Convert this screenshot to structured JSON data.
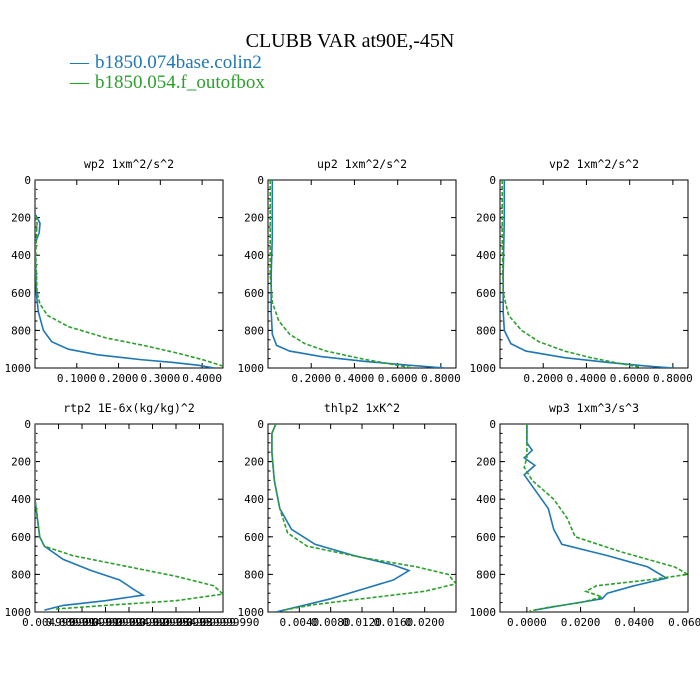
{
  "title": "CLUBB VAR at90E,-45N",
  "legend": [
    {
      "label": "b1850.074base.colin2",
      "color": "#1f77b4",
      "dash": "solid"
    },
    {
      "label": "b1850.054.f_outofbox",
      "color": "#2ca02c",
      "dash": "dashed"
    }
  ],
  "chart_data": [
    {
      "type": "line",
      "title": "wp2  1xm^2/s^2",
      "xlim": [
        0,
        0.45
      ],
      "xticks": [
        0.1,
        0.2,
        0.3,
        0.4
      ],
      "xtick_labels": [
        "0.1000",
        "0.2000",
        "0.3000",
        "0.4000"
      ],
      "ylim": [
        1000,
        0
      ],
      "yticks": [
        0,
        200,
        400,
        600,
        800,
        1000
      ],
      "series": [
        {
          "name": "b1850.074base.colin2",
          "points": [
            [
              0,
              0
            ],
            [
              0,
              180
            ],
            [
              0.012,
              230
            ],
            [
              0.01,
              280
            ],
            [
              0,
              340
            ],
            [
              0.003,
              600
            ],
            [
              0.008,
              700
            ],
            [
              0.02,
              800
            ],
            [
              0.04,
              860
            ],
            [
              0.08,
              900
            ],
            [
              0.15,
              930
            ],
            [
              0.25,
              955
            ],
            [
              0.33,
              970
            ],
            [
              0.39,
              985
            ],
            [
              0.43,
              1000
            ]
          ]
        },
        {
          "name": "b1850.054.f_outofbox",
          "points": [
            [
              0,
              0
            ],
            [
              0,
              180
            ],
            [
              0.005,
              230
            ],
            [
              0.003,
              300
            ],
            [
              0.002,
              400
            ],
            [
              0.005,
              600
            ],
            [
              0.012,
              660
            ],
            [
              0.03,
              720
            ],
            [
              0.08,
              780
            ],
            [
              0.17,
              840
            ],
            [
              0.26,
              880
            ],
            [
              0.34,
              920
            ],
            [
              0.4,
              955
            ],
            [
              0.45,
              990
            ]
          ]
        }
      ]
    },
    {
      "type": "line",
      "title": "up2  1xm^2/s^2",
      "xlim": [
        0,
        0.87
      ],
      "xticks": [
        0.2,
        0.4,
        0.6,
        0.8
      ],
      "xtick_labels": [
        "0.2000",
        "0.4000",
        "0.6000",
        "0.8000"
      ],
      "ylim": [
        1000,
        0
      ],
      "yticks": [
        0,
        200,
        400,
        600,
        800,
        1000
      ],
      "series": [
        {
          "name": "b1850.074base.colin2",
          "points": [
            [
              0.02,
              0
            ],
            [
              0.02,
              150
            ],
            [
              0.02,
              300
            ],
            [
              0.015,
              500
            ],
            [
              0.015,
              700
            ],
            [
              0.02,
              820
            ],
            [
              0.04,
              880
            ],
            [
              0.1,
              910
            ],
            [
              0.25,
              940
            ],
            [
              0.45,
              965
            ],
            [
              0.65,
              985
            ],
            [
              0.82,
              1000
            ]
          ]
        },
        {
          "name": "b1850.054.f_outofbox",
          "points": [
            [
              0.01,
              0
            ],
            [
              0.01,
              200
            ],
            [
              0.01,
              500
            ],
            [
              0.02,
              650
            ],
            [
              0.05,
              750
            ],
            [
              0.1,
              820
            ],
            [
              0.17,
              870
            ],
            [
              0.27,
              910
            ],
            [
              0.37,
              935
            ],
            [
              0.45,
              955
            ],
            [
              0.55,
              975
            ],
            [
              0.67,
              1000
            ]
          ]
        }
      ]
    },
    {
      "type": "line",
      "title": "vp2  1xm^2/s^2",
      "xlim": [
        0,
        0.87
      ],
      "xticks": [
        0.2,
        0.4,
        0.6,
        0.8
      ],
      "xtick_labels": [
        "0.2000",
        "0.4000",
        "0.6000",
        "0.8000"
      ],
      "ylim": [
        1000,
        0
      ],
      "yticks": [
        0,
        200,
        400,
        600,
        800,
        1000
      ],
      "series": [
        {
          "name": "b1850.074base.colin2",
          "points": [
            [
              0.02,
              0
            ],
            [
              0.02,
              200
            ],
            [
              0.015,
              500
            ],
            [
              0.015,
              700
            ],
            [
              0.02,
              800
            ],
            [
              0.05,
              870
            ],
            [
              0.12,
              910
            ],
            [
              0.3,
              945
            ],
            [
              0.5,
              970
            ],
            [
              0.68,
              990
            ],
            [
              0.8,
              1000
            ]
          ]
        },
        {
          "name": "b1850.054.f_outofbox",
          "points": [
            [
              0.01,
              0
            ],
            [
              0.01,
              300
            ],
            [
              0.015,
              600
            ],
            [
              0.04,
              720
            ],
            [
              0.1,
              800
            ],
            [
              0.18,
              860
            ],
            [
              0.3,
              910
            ],
            [
              0.42,
              945
            ],
            [
              0.55,
              975
            ],
            [
              0.65,
              995
            ]
          ]
        }
      ]
    },
    {
      "type": "line",
      "title": "rtp2  1E-6x(kg/kg)^2",
      "xlim": [
        0,
        0.04
      ],
      "xticks": [
        0.005,
        0.01,
        0.015,
        0.02,
        0.025,
        0.03,
        0.035,
        0.04
      ],
      "xtick_labels": [
        "0.004999999",
        "0.009999999",
        "0.014999999",
        "0.019999999",
        "0.024999999",
        "0.029999999",
        "0.034999999",
        "0.039999990"
      ],
      "ylim": [
        1000,
        0
      ],
      "yticks": [
        0,
        200,
        400,
        600,
        800,
        1000
      ],
      "series": [
        {
          "name": "b1850.074base.colin2",
          "points": [
            [
              0,
              0
            ],
            [
              0,
              400
            ],
            [
              0.001,
              600
            ],
            [
              0.002,
              650
            ],
            [
              0.006,
              720
            ],
            [
              0.012,
              780
            ],
            [
              0.018,
              830
            ],
            [
              0.021,
              880
            ],
            [
              0.023,
              910
            ],
            [
              0.015,
              940
            ],
            [
              0.006,
              965
            ],
            [
              0.002,
              990
            ]
          ]
        },
        {
          "name": "b1850.054.f_outofbox",
          "points": [
            [
              0,
              0
            ],
            [
              0,
              400
            ],
            [
              0.001,
              600
            ],
            [
              0.002,
              650
            ],
            [
              0.008,
              700
            ],
            [
              0.018,
              750
            ],
            [
              0.03,
              810
            ],
            [
              0.038,
              860
            ],
            [
              0.04,
              905
            ],
            [
              0.03,
              940
            ],
            [
              0.015,
              965
            ],
            [
              0.004,
              985
            ]
          ]
        }
      ]
    },
    {
      "type": "line",
      "title": "thlp2  1xK^2",
      "xlim": [
        0,
        0.024
      ],
      "xticks": [
        0.004,
        0.008,
        0.012,
        0.016,
        0.02
      ],
      "xtick_labels": [
        "0.0040",
        "0.0080",
        "0.0120",
        "0.0160",
        "0.0200"
      ],
      "ylim": [
        1000,
        0
      ],
      "yticks": [
        0,
        200,
        400,
        600,
        800,
        1000
      ],
      "series": [
        {
          "name": "b1850.074base.colin2",
          "points": [
            [
              0.001,
              0
            ],
            [
              0.0005,
              50
            ],
            [
              0.0005,
              150
            ],
            [
              0.0008,
              300
            ],
            [
              0.0015,
              450
            ],
            [
              0.003,
              560
            ],
            [
              0.006,
              640
            ],
            [
              0.011,
              700
            ],
            [
              0.016,
              750
            ],
            [
              0.018,
              780
            ],
            [
              0.016,
              830
            ],
            [
              0.012,
              880
            ],
            [
              0.008,
              930
            ],
            [
              0.004,
              970
            ],
            [
              0.001,
              1000
            ]
          ]
        },
        {
          "name": "b1850.054.f_outofbox",
          "points": [
            [
              0.001,
              0
            ],
            [
              0.0005,
              50
            ],
            [
              0.0005,
              150
            ],
            [
              0.0008,
              300
            ],
            [
              0.0015,
              450
            ],
            [
              0.0025,
              580
            ],
            [
              0.005,
              650
            ],
            [
              0.012,
              710
            ],
            [
              0.019,
              760
            ],
            [
              0.023,
              800
            ],
            [
              0.024,
              850
            ],
            [
              0.02,
              890
            ],
            [
              0.012,
              930
            ],
            [
              0.006,
              960
            ],
            [
              0.002,
              990
            ]
          ]
        }
      ]
    },
    {
      "type": "line",
      "title": "wp3  1xm^3/s^3",
      "xlim": [
        -0.01,
        0.06
      ],
      "xticks": [
        0,
        0.02,
        0.04,
        0.06
      ],
      "xtick_labels": [
        "0.0000",
        "0.0200",
        "0.0400",
        "0.0600"
      ],
      "ylim": [
        1000,
        0
      ],
      "yticks": [
        0,
        200,
        400,
        600,
        800,
        1000
      ],
      "series": [
        {
          "name": "b1850.074base.colin2",
          "points": [
            [
              0,
              0
            ],
            [
              0,
              100
            ],
            [
              0.002,
              140
            ],
            [
              -0.001,
              180
            ],
            [
              0.003,
              220
            ],
            [
              -0.001,
              270
            ],
            [
              0.003,
              350
            ],
            [
              0.008,
              450
            ],
            [
              0.01,
              560
            ],
            [
              0.013,
              640
            ],
            [
              0.03,
              700
            ],
            [
              0.045,
              760
            ],
            [
              0.052,
              820
            ],
            [
              0.04,
              860
            ],
            [
              0.03,
              900
            ],
            [
              0.028,
              930
            ],
            [
              0.015,
              960
            ],
            [
              0.003,
              990
            ]
          ]
        },
        {
          "name": "b1850.054.f_outofbox",
          "points": [
            [
              0,
              0
            ],
            [
              0,
              100
            ],
            [
              0,
              180
            ],
            [
              -0.001,
              230
            ],
            [
              0.002,
              300
            ],
            [
              0.01,
              400
            ],
            [
              0.015,
              500
            ],
            [
              0.018,
              600
            ],
            [
              0.035,
              680
            ],
            [
              0.055,
              760
            ],
            [
              0.06,
              800
            ],
            [
              0.045,
              830
            ],
            [
              0.026,
              860
            ],
            [
              0.022,
              890
            ],
            [
              0.028,
              920
            ],
            [
              0.02,
              950
            ],
            [
              0.008,
              975
            ],
            [
              0.001,
              995
            ]
          ]
        }
      ]
    }
  ]
}
